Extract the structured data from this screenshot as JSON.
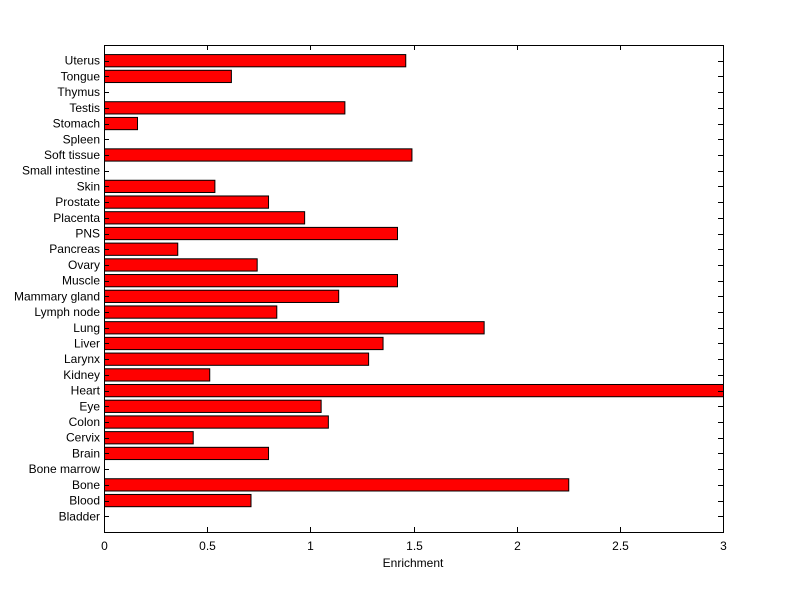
{
  "chart_data": {
    "type": "bar",
    "orientation": "horizontal",
    "categories": [
      "Bladder",
      "Blood",
      "Bone",
      "Bone marrow",
      "Brain",
      "Cervix",
      "Colon",
      "Eye",
      "Heart",
      "Kidney",
      "Larynx",
      "Liver",
      "Lung",
      "Lymph node",
      "Mammary gland",
      "Muscle",
      "Ovary",
      "Pancreas",
      "PNS",
      "Placenta",
      "Prostate",
      "Skin",
      "Small intestine",
      "Soft tissue",
      "Spleen",
      "Stomach",
      "Testis",
      "Thymus",
      "Tongue",
      "Uterus"
    ],
    "values": [
      0,
      0.71,
      2.25,
      0,
      0.795,
      0.43,
      1.085,
      1.05,
      3.0,
      0.51,
      1.28,
      1.35,
      1.84,
      0.835,
      1.135,
      1.42,
      0.74,
      0.355,
      1.42,
      0.97,
      0.795,
      0.535,
      0,
      1.49,
      0,
      0.16,
      1.165,
      0,
      0.615,
      1.46
    ],
    "xlabel": "Enrichment",
    "ylabel": "",
    "title": "",
    "xlim": [
      0,
      3
    ],
    "xticks": [
      "0",
      "0.5",
      "1",
      "1.5",
      "2",
      "2.5",
      "3"
    ],
    "bar_color": "#ff0000",
    "grid": false,
    "legend": "none"
  }
}
